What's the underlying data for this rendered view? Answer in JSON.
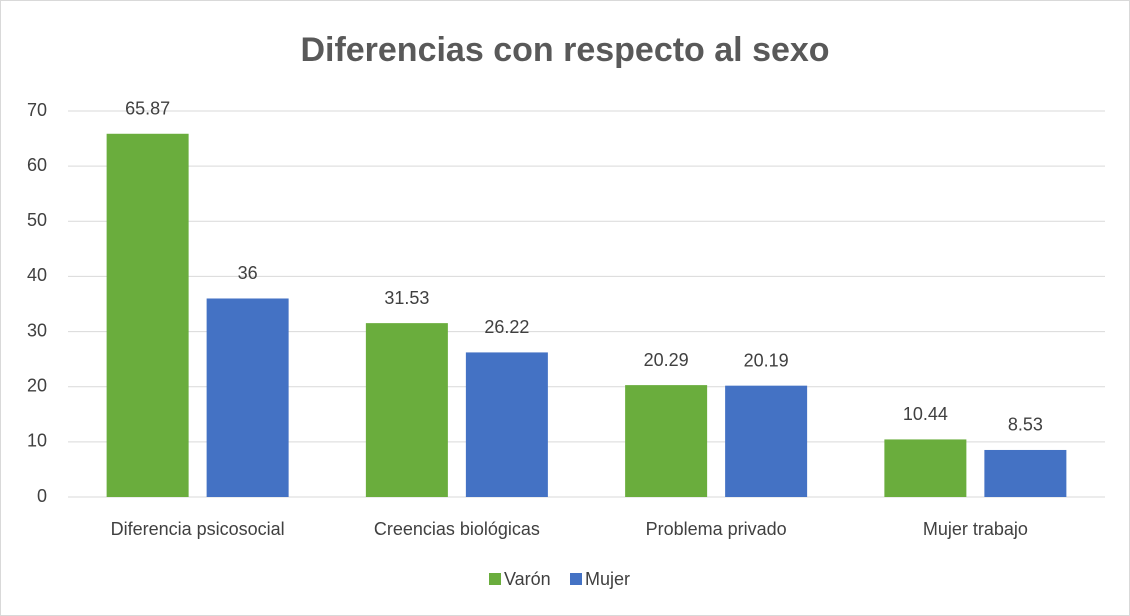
{
  "chart_data": {
    "type": "bar",
    "title": "Diferencias con respecto al sexo",
    "categories": [
      "Diferencia psicosocial",
      "Creencias biológicas",
      "Problema privado",
      "Mujer trabajo"
    ],
    "series": [
      {
        "name": "Varón",
        "color": "#6aad3d",
        "values": [
          65.87,
          31.53,
          20.29,
          10.44
        ]
      },
      {
        "name": "Mujer",
        "color": "#4472c4",
        "values": [
          36,
          26.22,
          20.19,
          8.53
        ]
      }
    ],
    "ylim": [
      0,
      70
    ],
    "yticks": [
      0,
      10,
      20,
      30,
      40,
      50,
      60,
      70
    ],
    "grid": true,
    "legend": "bottom"
  }
}
